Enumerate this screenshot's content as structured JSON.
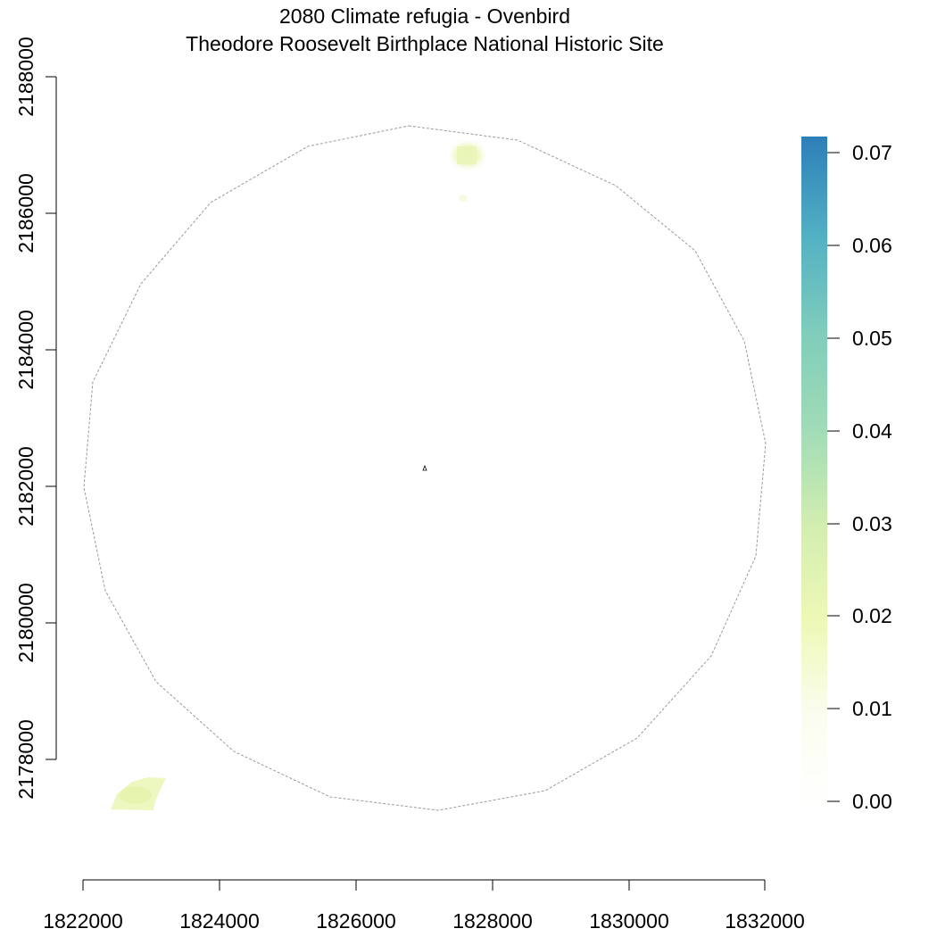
{
  "title": {
    "line1": "2080 Climate refugia - Ovenbird",
    "line2": "Theodore Roosevelt Birthplace National Historic Site"
  },
  "map": {
    "x_ticks": [
      "1822000",
      "1824000",
      "1826000",
      "1828000",
      "1830000",
      "1832000"
    ],
    "y_ticks": [
      "2178000",
      "2180000",
      "2182000",
      "2184000",
      "2186000",
      "2188000"
    ],
    "xlim": [
      1822000,
      1832000
    ],
    "ylim": [
      2178000,
      2188000
    ],
    "boundary_shape": "circle (dashed grey)",
    "park_marker": "small triangle at center",
    "habitat_patches": [
      {
        "name": "north patch",
        "x": 1827650,
        "y": 2186900,
        "value": 0.025
      },
      {
        "name": "southwest patch",
        "x": 1822800,
        "y": 2177350,
        "value": 0.025
      }
    ]
  },
  "legend": {
    "ticks": [
      "0.00",
      "0.01",
      "0.02",
      "0.03",
      "0.04",
      "0.05",
      "0.06",
      "0.07"
    ],
    "range": [
      0,
      0.072
    ],
    "colors": [
      "#ffffff",
      "#f7fbe6",
      "#edf8b1",
      "#c7e9b4",
      "#7fcdbb",
      "#41b6c4",
      "#2c7fb8"
    ]
  }
}
